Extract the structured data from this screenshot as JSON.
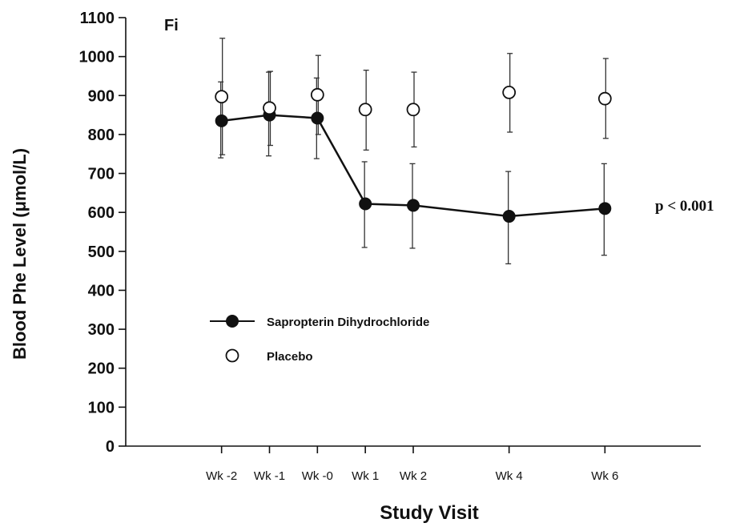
{
  "chart_data": {
    "type": "line",
    "panel_label": "Fi",
    "xlabel": "Study Visit",
    "ylabel": "Blood Phe Level (μmol/L)",
    "ylim": [
      0,
      1100
    ],
    "yticks": [
      "0",
      "100",
      "200",
      "300",
      "400",
      "500",
      "600",
      "700",
      "800",
      "900",
      "1000",
      "1100"
    ],
    "categories": [
      "Wk -2",
      "Wk -1",
      "Wk -0",
      "Wk 1",
      "Wk 2",
      "Wk 4",
      "Wk 6"
    ],
    "category_positions": [
      -2,
      -1,
      0,
      1,
      2,
      4,
      6
    ],
    "xlim": [
      -4,
      8
    ],
    "grid": false,
    "legend_position": "center-left",
    "annotation": "p < 0.001",
    "series": [
      {
        "name": "Sapropterin Dihydrochloride",
        "marker": "filled-circle",
        "connected": true,
        "color": "#111111",
        "values": [
          835,
          850,
          842,
          622,
          618,
          590,
          610
        ],
        "err_low": [
          740,
          745,
          738,
          510,
          508,
          468,
          490
        ],
        "err_high": [
          935,
          960,
          945,
          730,
          725,
          705,
          725
        ]
      },
      {
        "name": "Placebo",
        "marker": "open-circle",
        "connected": false,
        "color": "#111111",
        "values": [
          897,
          868,
          902,
          864,
          864,
          908,
          892
        ],
        "err_low": [
          748,
          772,
          800,
          760,
          768,
          806,
          790
        ],
        "err_high": [
          1047,
          962,
          1003,
          965,
          960,
          1008,
          995
        ]
      }
    ]
  }
}
